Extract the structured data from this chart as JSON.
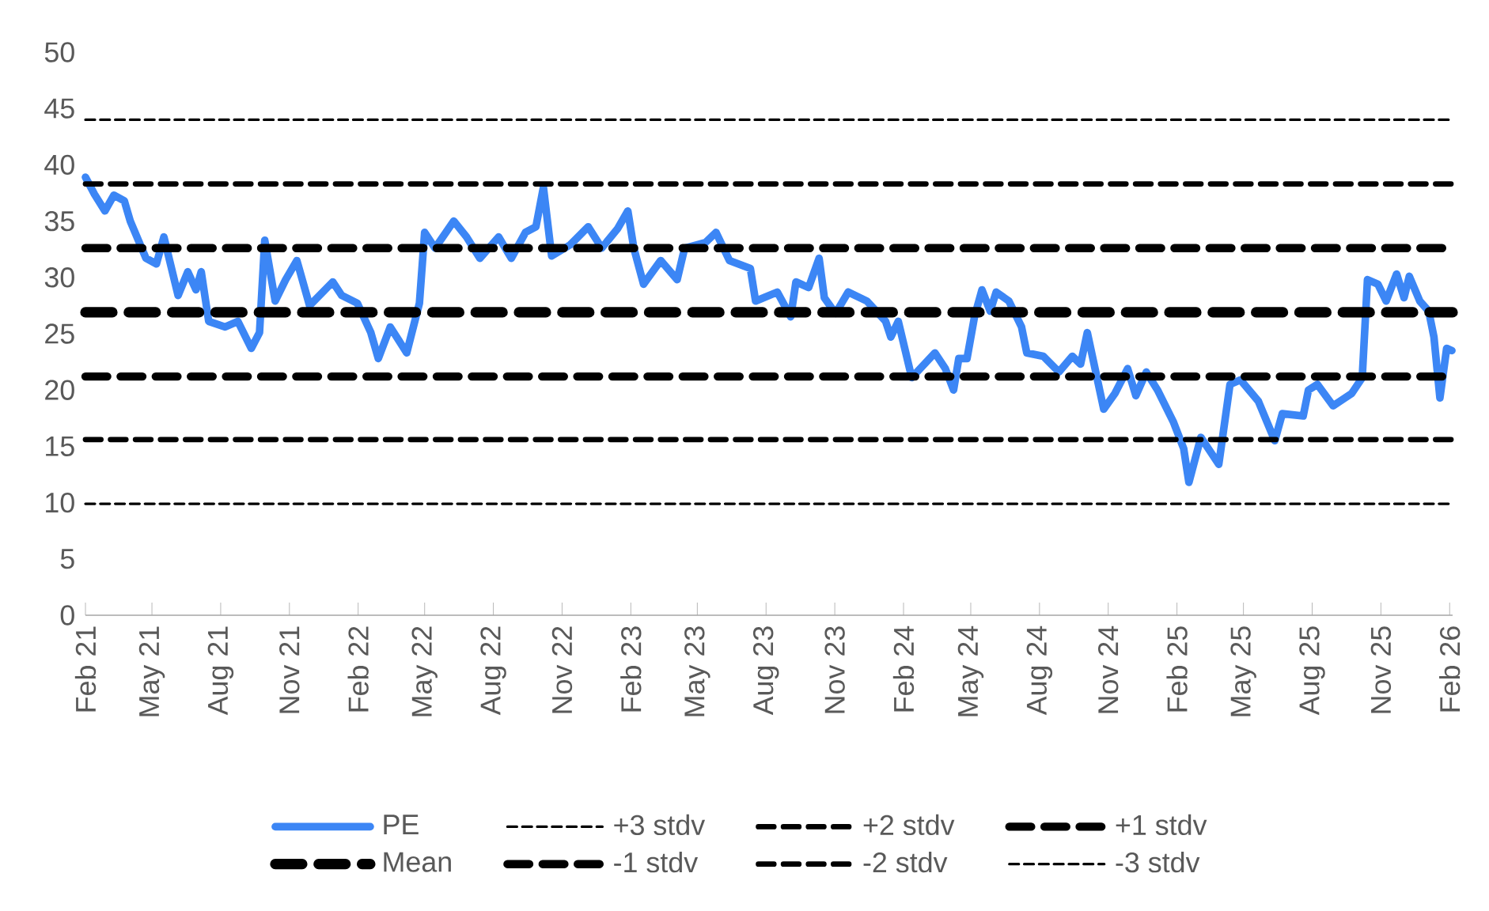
{
  "chart_data": {
    "type": "line",
    "ylim": [
      0,
      50
    ],
    "yticks": [
      0,
      5,
      10,
      15,
      20,
      25,
      30,
      35,
      40,
      45,
      50
    ],
    "xlim": [
      "2021-02-01",
      "2026-02-05"
    ],
    "xticks": [
      {
        "value": "2021-02-01",
        "label": "Feb 21"
      },
      {
        "value": "2021-05-01",
        "label": "May 21"
      },
      {
        "value": "2021-08-01",
        "label": "Aug 21"
      },
      {
        "value": "2021-11-01",
        "label": "Nov 21"
      },
      {
        "value": "2022-02-01",
        "label": "Feb 22"
      },
      {
        "value": "2022-05-01",
        "label": "May 22"
      },
      {
        "value": "2022-08-01",
        "label": "Aug 22"
      },
      {
        "value": "2022-11-01",
        "label": "Nov 22"
      },
      {
        "value": "2023-02-01",
        "label": "Feb 23"
      },
      {
        "value": "2023-05-01",
        "label": "May 23"
      },
      {
        "value": "2023-08-01",
        "label": "Aug 23"
      },
      {
        "value": "2023-11-01",
        "label": "Nov 23"
      },
      {
        "value": "2024-02-01",
        "label": "Feb 24"
      },
      {
        "value": "2024-05-01",
        "label": "May 24"
      },
      {
        "value": "2024-08-01",
        "label": "Aug 24"
      },
      {
        "value": "2024-11-01",
        "label": "Nov 24"
      },
      {
        "value": "2025-02-01",
        "label": "Feb 25"
      },
      {
        "value": "2025-05-01",
        "label": "May 25"
      },
      {
        "value": "2025-08-01",
        "label": "Aug 25"
      },
      {
        "value": "2025-11-01",
        "label": "Nov 25"
      },
      {
        "value": "2026-02-01",
        "label": "Feb 26"
      }
    ],
    "legend": "bottom",
    "series": [
      {
        "name": "PE",
        "color": "#3c86f5",
        "line_style": "solid",
        "x": [
          "2021-02-01",
          "2021-02-13",
          "2021-02-27",
          "2021-03-11",
          "2021-03-25",
          "2021-04-02",
          "2021-04-23",
          "2021-05-07",
          "2021-05-17",
          "2021-06-05",
          "2021-06-18",
          "2021-06-29",
          "2021-07-06",
          "2021-07-16",
          "2021-08-07",
          "2021-08-24",
          "2021-09-11",
          "2021-09-22",
          "2021-09-29",
          "2021-10-13",
          "2021-10-27",
          "2021-11-11",
          "2021-11-28",
          "2021-12-29",
          "2022-01-10",
          "2022-01-31",
          "2022-02-18",
          "2022-02-28",
          "2022-03-16",
          "2022-04-07",
          "2022-04-24",
          "2022-05-01",
          "2022-05-15",
          "2022-06-09",
          "2022-06-26",
          "2022-07-14",
          "2022-08-08",
          "2022-08-25",
          "2022-09-13",
          "2022-09-27",
          "2022-10-07",
          "2022-10-18",
          "2022-11-12",
          "2022-12-06",
          "2022-12-24",
          "2023-01-14",
          "2023-01-28",
          "2023-02-05",
          "2023-02-18",
          "2023-03-13",
          "2023-04-04",
          "2023-04-14",
          "2023-05-12",
          "2023-05-26",
          "2023-06-13",
          "2023-07-11",
          "2023-07-18",
          "2023-08-16",
          "2023-09-03",
          "2023-09-10",
          "2023-09-27",
          "2023-10-11",
          "2023-10-18",
          "2023-11-02",
          "2023-11-19",
          "2023-12-14",
          "2024-01-08",
          "2024-01-15",
          "2024-01-25",
          "2024-02-12",
          "2024-03-14",
          "2024-03-28",
          "2024-04-08",
          "2024-04-15",
          "2024-04-26",
          "2024-05-06",
          "2024-05-16",
          "2024-05-27",
          "2024-06-04",
          "2024-06-21",
          "2024-07-08",
          "2024-07-15",
          "2024-08-06",
          "2024-08-27",
          "2024-09-14",
          "2024-09-25",
          "2024-10-04",
          "2024-10-26",
          "2024-11-10",
          "2024-11-27",
          "2024-12-08",
          "2024-12-22",
          "2025-01-06",
          "2025-01-27",
          "2025-02-10",
          "2025-02-17",
          "2025-03-05",
          "2025-03-29",
          "2025-04-13",
          "2025-04-27",
          "2025-05-21",
          "2025-06-12",
          "2025-06-22",
          "2025-07-20",
          "2025-07-27",
          "2025-08-08",
          "2025-08-29",
          "2025-09-23",
          "2025-10-07",
          "2025-10-14",
          "2025-10-28",
          "2025-11-08",
          "2025-11-22",
          "2025-12-02",
          "2025-12-09",
          "2025-12-23",
          "2026-01-04",
          "2026-01-11",
          "2026-01-19",
          "2026-01-28",
          "2026-02-04"
        ],
        "values": [
          38.9,
          37.4,
          35.9,
          37.3,
          36.8,
          35.0,
          31.7,
          31.2,
          33.6,
          28.4,
          30.5,
          28.9,
          30.5,
          26.1,
          25.6,
          26.1,
          23.7,
          25.1,
          33.3,
          27.9,
          29.8,
          31.5,
          27.5,
          29.6,
          28.4,
          27.7,
          25.1,
          22.8,
          25.6,
          23.3,
          27.7,
          34.0,
          32.6,
          35.0,
          33.6,
          31.7,
          33.6,
          31.7,
          34.0,
          34.5,
          38.0,
          31.9,
          32.9,
          34.5,
          32.6,
          34.3,
          35.9,
          32.6,
          29.4,
          31.5,
          29.8,
          32.6,
          33.1,
          34.0,
          31.5,
          30.8,
          27.9,
          28.7,
          26.5,
          29.6,
          29.1,
          31.7,
          28.2,
          26.8,
          28.7,
          27.9,
          26.1,
          24.7,
          26.1,
          21.1,
          23.3,
          21.9,
          20.0,
          22.8,
          22.8,
          26.5,
          28.9,
          27.0,
          28.7,
          27.9,
          25.6,
          23.3,
          23.0,
          21.6,
          23.0,
          22.3,
          25.1,
          18.3,
          19.7,
          21.9,
          19.5,
          21.6,
          20.0,
          17.2,
          14.8,
          11.8,
          15.8,
          13.4,
          20.5,
          20.9,
          19.0,
          15.5,
          17.9,
          17.7,
          20.0,
          20.5,
          18.6,
          19.7,
          21.1,
          29.8,
          29.4,
          27.9,
          30.3,
          28.2,
          30.1,
          27.9,
          27.0,
          24.7,
          19.3,
          23.7,
          23.5
        ]
      },
      {
        "name": "+3 stdv",
        "color": "#000000",
        "line_style": "dashed",
        "x": [
          "2021-02-01",
          "2026-02-05"
        ],
        "values": [
          44.0,
          44.0
        ]
      },
      {
        "name": "+2 stdv",
        "color": "#000000",
        "line_style": "dashed",
        "x": [
          "2021-02-01",
          "2026-02-05"
        ],
        "values": [
          38.3,
          38.3
        ]
      },
      {
        "name": "+1 stdv",
        "color": "#000000",
        "line_style": "dashed",
        "x": [
          "2021-02-01",
          "2026-02-05"
        ],
        "values": [
          32.6,
          32.6
        ]
      },
      {
        "name": "Mean",
        "color": "#000000",
        "line_style": "dashed",
        "x": [
          "2021-02-01",
          "2026-02-05"
        ],
        "values": [
          26.9,
          26.9
        ]
      },
      {
        "name": "-1 stdv",
        "color": "#000000",
        "line_style": "dashed",
        "x": [
          "2021-02-01",
          "2026-02-05"
        ],
        "values": [
          21.2,
          21.2
        ]
      },
      {
        "name": "-2 stdv",
        "color": "#000000",
        "line_style": "dashed",
        "x": [
          "2021-02-01",
          "2026-02-05"
        ],
        "values": [
          15.6,
          15.6
        ]
      },
      {
        "name": "-3 stdv",
        "color": "#000000",
        "line_style": "dashed",
        "x": [
          "2021-02-01",
          "2026-02-05"
        ],
        "values": [
          9.9,
          9.9
        ]
      }
    ]
  }
}
